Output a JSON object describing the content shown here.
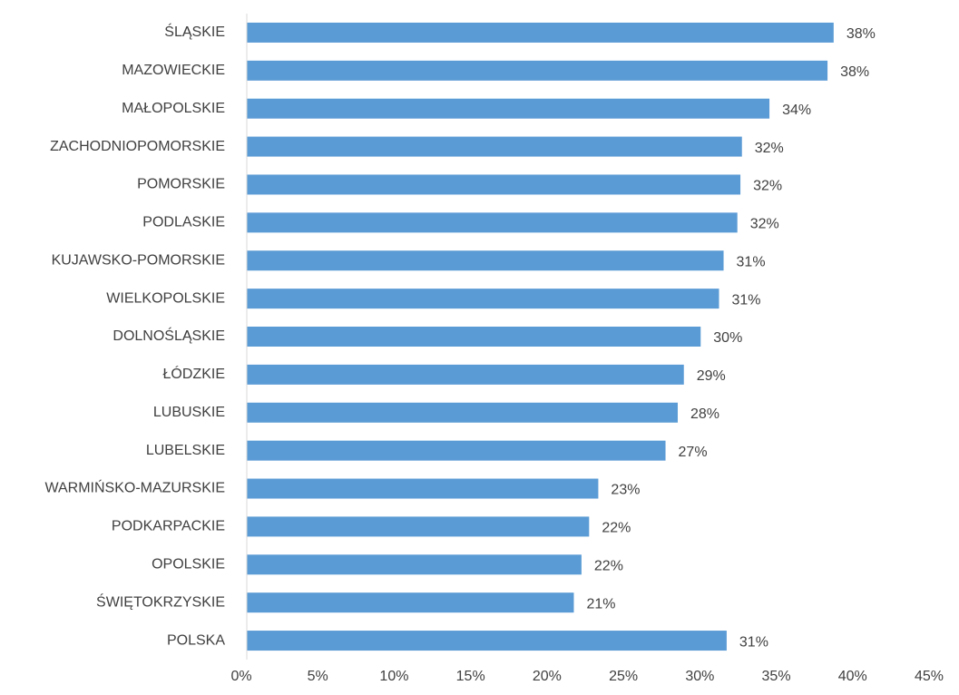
{
  "chart_data": {
    "type": "bar",
    "orientation": "horizontal",
    "categories": [
      "ŚLĄSKIE",
      "MAZOWIECKIE",
      "MAŁOPOLSKIE",
      "ZACHODNIOPOMORSKIE",
      "POMORSKIE",
      "PODLASKIE",
      "KUJAWSKO-POMORSKIE",
      "WIELKOPOLSKIE",
      "DOLNOŚLĄSKIE",
      "ŁÓDZKIE",
      "LUBUSKIE",
      "LUBELSKIE",
      "WARMIŃSKO-MAZURSKIE",
      "PODKARPACKIE",
      "OPOLSKIE",
      "ŚWIĘTOKRZYSKIE",
      "POLSKA"
    ],
    "values": [
      38.4,
      38.0,
      34.2,
      32.4,
      32.3,
      32.1,
      31.2,
      30.9,
      29.7,
      28.6,
      28.2,
      27.4,
      23.0,
      22.4,
      21.9,
      21.4,
      31.4
    ],
    "value_labels": [
      "38%",
      "38%",
      "34%",
      "32%",
      "32%",
      "32%",
      "31%",
      "31%",
      "30%",
      "29%",
      "28%",
      "27%",
      "23%",
      "22%",
      "22%",
      "21%",
      "31%"
    ],
    "color": "#5b9bd5",
    "xlim": [
      0,
      45
    ],
    "xticks": [
      {
        "value": 0,
        "label": "0%"
      },
      {
        "value": 5,
        "label": "5%"
      },
      {
        "value": 10,
        "label": "10%"
      },
      {
        "value": 15,
        "label": "15%"
      },
      {
        "value": 20,
        "label": "20%"
      },
      {
        "value": 25,
        "label": "25%"
      },
      {
        "value": 30,
        "label": "30%"
      },
      {
        "value": 35,
        "label": "35%"
      },
      {
        "value": 40,
        "label": "40%"
      },
      {
        "value": 45,
        "label": "45%"
      }
    ],
    "grid": false
  }
}
